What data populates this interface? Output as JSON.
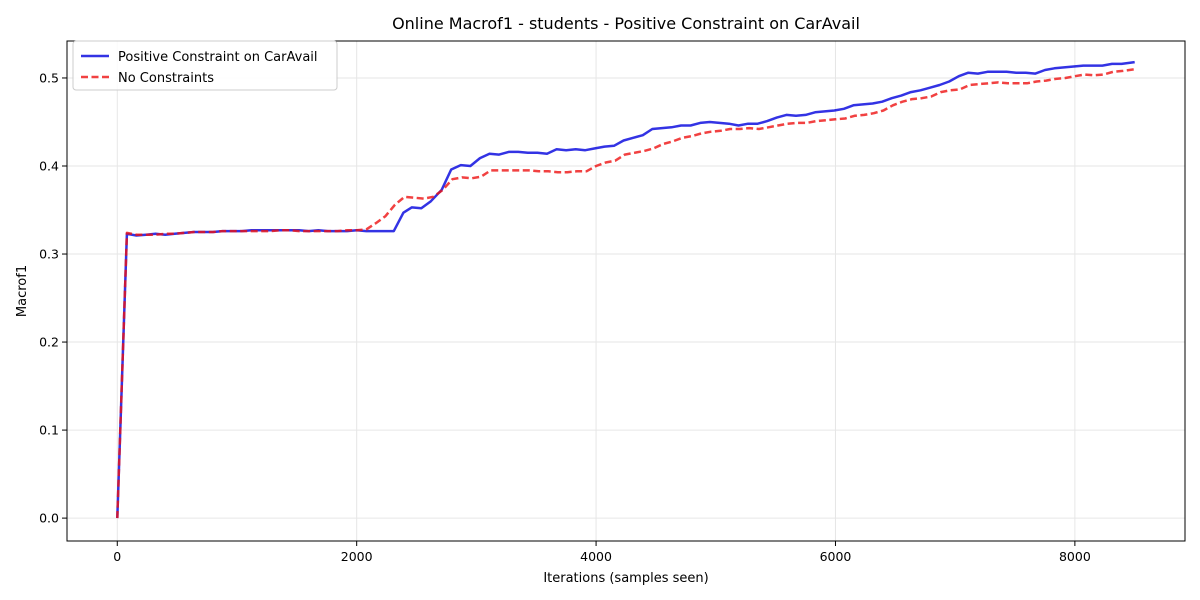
{
  "chart_data": {
    "type": "line",
    "title": "Online Macrof1 - students - Positive Constraint on CarAvail",
    "xlabel": "Iterations (samples seen)",
    "ylabel": "Macrof1",
    "xlim": [
      -420,
      8920
    ],
    "ylim": [
      -0.026,
      0.542
    ],
    "xticks": [
      0,
      2000,
      4000,
      6000,
      8000
    ],
    "yticks": [
      0.0,
      0.1,
      0.2,
      0.3,
      0.4,
      0.5
    ],
    "ytick_labels": [
      "0.0",
      "0.1",
      "0.2",
      "0.3",
      "0.4",
      "0.5"
    ],
    "grid": true,
    "legend_position": "top-left",
    "series": [
      {
        "name": "Positive Constraint on CarAvail",
        "color": "#0000dd",
        "style": "solid",
        "points": [
          [
            0,
            0.0
          ],
          [
            80,
            0.323
          ],
          [
            160,
            0.321
          ],
          [
            240,
            0.322
          ],
          [
            320,
            0.323
          ],
          [
            400,
            0.322
          ],
          [
            480,
            0.323
          ],
          [
            560,
            0.324
          ],
          [
            640,
            0.325
          ],
          [
            720,
            0.325
          ],
          [
            800,
            0.325
          ],
          [
            880,
            0.326
          ],
          [
            960,
            0.326
          ],
          [
            1040,
            0.326
          ],
          [
            1120,
            0.327
          ],
          [
            1200,
            0.327
          ],
          [
            1280,
            0.327
          ],
          [
            1360,
            0.327
          ],
          [
            1440,
            0.327
          ],
          [
            1520,
            0.327
          ],
          [
            1600,
            0.326
          ],
          [
            1680,
            0.327
          ],
          [
            1760,
            0.326
          ],
          [
            1840,
            0.326
          ],
          [
            1920,
            0.326
          ],
          [
            2000,
            0.327
          ],
          [
            2080,
            0.326
          ],
          [
            2160,
            0.326
          ],
          [
            2240,
            0.326
          ],
          [
            2310,
            0.326
          ],
          [
            2390,
            0.347
          ],
          [
            2460,
            0.353
          ],
          [
            2540,
            0.352
          ],
          [
            2620,
            0.36
          ],
          [
            2710,
            0.373
          ],
          [
            2790,
            0.396
          ],
          [
            2870,
            0.401
          ],
          [
            2950,
            0.4
          ],
          [
            3030,
            0.409
          ],
          [
            3110,
            0.414
          ],
          [
            3190,
            0.413
          ],
          [
            3270,
            0.416
          ],
          [
            3350,
            0.416
          ],
          [
            3430,
            0.415
          ],
          [
            3510,
            0.415
          ],
          [
            3590,
            0.414
          ],
          [
            3670,
            0.419
          ],
          [
            3750,
            0.418
          ],
          [
            3830,
            0.419
          ],
          [
            3910,
            0.418
          ],
          [
            3990,
            0.42
          ],
          [
            4070,
            0.422
          ],
          [
            4150,
            0.423
          ],
          [
            4230,
            0.429
          ],
          [
            4310,
            0.432
          ],
          [
            4390,
            0.435
          ],
          [
            4470,
            0.442
          ],
          [
            4550,
            0.443
          ],
          [
            4630,
            0.444
          ],
          [
            4710,
            0.446
          ],
          [
            4790,
            0.446
          ],
          [
            4870,
            0.449
          ],
          [
            4950,
            0.45
          ],
          [
            5030,
            0.449
          ],
          [
            5110,
            0.448
          ],
          [
            5190,
            0.446
          ],
          [
            5270,
            0.448
          ],
          [
            5350,
            0.448
          ],
          [
            5430,
            0.451
          ],
          [
            5510,
            0.455
          ],
          [
            5590,
            0.458
          ],
          [
            5670,
            0.457
          ],
          [
            5750,
            0.458
          ],
          [
            5830,
            0.461
          ],
          [
            5910,
            0.462
          ],
          [
            5990,
            0.463
          ],
          [
            6070,
            0.465
          ],
          [
            6150,
            0.469
          ],
          [
            6230,
            0.47
          ],
          [
            6310,
            0.471
          ],
          [
            6390,
            0.473
          ],
          [
            6470,
            0.477
          ],
          [
            6550,
            0.48
          ],
          [
            6630,
            0.484
          ],
          [
            6710,
            0.486
          ],
          [
            6790,
            0.489
          ],
          [
            6870,
            0.492
          ],
          [
            6950,
            0.496
          ],
          [
            7030,
            0.502
          ],
          [
            7110,
            0.506
          ],
          [
            7190,
            0.505
          ],
          [
            7270,
            0.507
          ],
          [
            7350,
            0.507
          ],
          [
            7430,
            0.507
          ],
          [
            7510,
            0.506
          ],
          [
            7590,
            0.506
          ],
          [
            7670,
            0.505
          ],
          [
            7750,
            0.509
          ],
          [
            7830,
            0.511
          ],
          [
            7910,
            0.512
          ],
          [
            7990,
            0.513
          ],
          [
            8070,
            0.514
          ],
          [
            8150,
            0.514
          ],
          [
            8230,
            0.514
          ],
          [
            8310,
            0.516
          ],
          [
            8390,
            0.516
          ],
          [
            8500,
            0.518
          ]
        ]
      },
      {
        "name": "No Constraints",
        "color": "#ee1111",
        "style": "dashed",
        "points": [
          [
            0,
            0.0
          ],
          [
            80,
            0.324
          ],
          [
            160,
            0.322
          ],
          [
            240,
            0.322
          ],
          [
            320,
            0.322
          ],
          [
            400,
            0.323
          ],
          [
            480,
            0.323
          ],
          [
            560,
            0.324
          ],
          [
            640,
            0.325
          ],
          [
            720,
            0.325
          ],
          [
            800,
            0.325
          ],
          [
            880,
            0.326
          ],
          [
            960,
            0.326
          ],
          [
            1040,
            0.326
          ],
          [
            1120,
            0.326
          ],
          [
            1200,
            0.326
          ],
          [
            1280,
            0.326
          ],
          [
            1360,
            0.327
          ],
          [
            1440,
            0.327
          ],
          [
            1520,
            0.326
          ],
          [
            1600,
            0.326
          ],
          [
            1680,
            0.326
          ],
          [
            1760,
            0.326
          ],
          [
            1840,
            0.326
          ],
          [
            1920,
            0.327
          ],
          [
            2000,
            0.327
          ],
          [
            2080,
            0.328
          ],
          [
            2160,
            0.335
          ],
          [
            2240,
            0.343
          ],
          [
            2320,
            0.356
          ],
          [
            2400,
            0.365
          ],
          [
            2480,
            0.364
          ],
          [
            2560,
            0.363
          ],
          [
            2640,
            0.365
          ],
          [
            2720,
            0.373
          ],
          [
            2800,
            0.385
          ],
          [
            2880,
            0.387
          ],
          [
            2960,
            0.386
          ],
          [
            3040,
            0.388
          ],
          [
            3120,
            0.395
          ],
          [
            3200,
            0.395
          ],
          [
            3280,
            0.395
          ],
          [
            3360,
            0.395
          ],
          [
            3440,
            0.395
          ],
          [
            3520,
            0.394
          ],
          [
            3600,
            0.394
          ],
          [
            3680,
            0.393
          ],
          [
            3760,
            0.393
          ],
          [
            3840,
            0.394
          ],
          [
            3920,
            0.394
          ],
          [
            4000,
            0.4
          ],
          [
            4080,
            0.404
          ],
          [
            4160,
            0.406
          ],
          [
            4240,
            0.413
          ],
          [
            4320,
            0.415
          ],
          [
            4400,
            0.417
          ],
          [
            4480,
            0.42
          ],
          [
            4560,
            0.425
          ],
          [
            4640,
            0.428
          ],
          [
            4720,
            0.432
          ],
          [
            4800,
            0.434
          ],
          [
            4880,
            0.437
          ],
          [
            4960,
            0.439
          ],
          [
            5040,
            0.44
          ],
          [
            5120,
            0.442
          ],
          [
            5200,
            0.442
          ],
          [
            5280,
            0.443
          ],
          [
            5360,
            0.442
          ],
          [
            5440,
            0.444
          ],
          [
            5520,
            0.446
          ],
          [
            5600,
            0.448
          ],
          [
            5680,
            0.449
          ],
          [
            5760,
            0.449
          ],
          [
            5840,
            0.451
          ],
          [
            5920,
            0.452
          ],
          [
            6000,
            0.453
          ],
          [
            6080,
            0.454
          ],
          [
            6160,
            0.457
          ],
          [
            6240,
            0.458
          ],
          [
            6320,
            0.46
          ],
          [
            6400,
            0.463
          ],
          [
            6480,
            0.469
          ],
          [
            6560,
            0.473
          ],
          [
            6640,
            0.476
          ],
          [
            6720,
            0.477
          ],
          [
            6800,
            0.479
          ],
          [
            6880,
            0.484
          ],
          [
            6960,
            0.486
          ],
          [
            7040,
            0.487
          ],
          [
            7120,
            0.492
          ],
          [
            7200,
            0.493
          ],
          [
            7280,
            0.494
          ],
          [
            7360,
            0.495
          ],
          [
            7440,
            0.494
          ],
          [
            7520,
            0.494
          ],
          [
            7600,
            0.494
          ],
          [
            7680,
            0.496
          ],
          [
            7760,
            0.497
          ],
          [
            7840,
            0.499
          ],
          [
            7920,
            0.5
          ],
          [
            8000,
            0.502
          ],
          [
            8080,
            0.504
          ],
          [
            8160,
            0.503
          ],
          [
            8240,
            0.504
          ],
          [
            8320,
            0.507
          ],
          [
            8400,
            0.508
          ],
          [
            8500,
            0.51
          ]
        ]
      }
    ]
  }
}
